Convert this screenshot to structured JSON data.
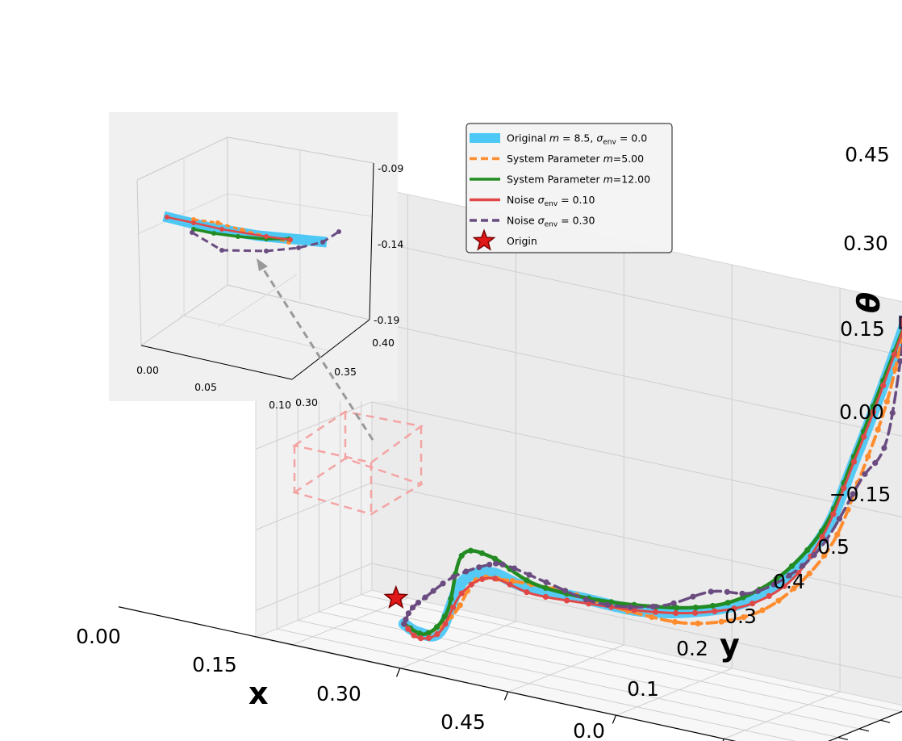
{
  "chart_data": {
    "type": "line",
    "projection": "3d",
    "grid": true,
    "axes": {
      "x": {
        "label": "x",
        "ticks": [
          "0.00",
          "0.15",
          "0.30",
          "0.45"
        ]
      },
      "y": {
        "label": "y",
        "ticks": [
          "0.0",
          "0.1",
          "0.2",
          "0.3",
          "0.4",
          "0.5"
        ]
      },
      "z": {
        "label": "θ",
        "ticks": [
          "−0.15",
          "0.00",
          "0.15",
          "0.30",
          "0.45"
        ]
      }
    },
    "legend": {
      "placement": "upper-center",
      "entries": [
        {
          "prefix": "Original ",
          "sym": "m",
          "mid": " = 8.5, ",
          "sigma": "σ",
          "sub": "env",
          "suffix": " = 0.0",
          "color": "#4dc8f5",
          "style": "thick"
        },
        {
          "prefix": "System Parameter ",
          "sym": "m",
          "mid": "=5.00",
          "sigma": "",
          "sub": "",
          "suffix": "",
          "color": "#ff8c2e",
          "style": "dashed"
        },
        {
          "prefix": "System Parameter ",
          "sym": "m",
          "mid": "=12.00",
          "sigma": "",
          "sub": "",
          "suffix": "",
          "color": "#228b22",
          "style": "solid"
        },
        {
          "prefix": "Noise ",
          "sym": "",
          "mid": "",
          "sigma": "σ",
          "sub": "env",
          "suffix": " = 0.10",
          "color": "#e04848",
          "style": "solid"
        },
        {
          "prefix": "Noise ",
          "sym": "",
          "mid": "",
          "sigma": "σ",
          "sub": "env",
          "suffix": " = 0.30",
          "color": "#6a4c80",
          "style": "dashed"
        },
        {
          "prefix": "Origin",
          "sym": "",
          "mid": "",
          "sigma": "",
          "sub": "",
          "suffix": "",
          "color": "#e01818",
          "style": "star"
        }
      ]
    },
    "series": [
      {
        "name": "Original m = 8.5, σenv = 0.0",
        "color": "#4dc8f5",
        "points": [
          [
            0.0,
            0.02,
            -0.12
          ],
          [
            0.02,
            0.02,
            -0.13
          ],
          [
            0.05,
            0.02,
            -0.12
          ],
          [
            0.08,
            0.02,
            -0.02
          ],
          [
            0.12,
            0.02,
            0.01
          ],
          [
            0.16,
            0.05,
            -0.01
          ],
          [
            0.22,
            0.1,
            -0.02
          ],
          [
            0.28,
            0.18,
            -0.04
          ],
          [
            0.33,
            0.26,
            -0.04
          ],
          [
            0.38,
            0.33,
            -0.02
          ],
          [
            0.42,
            0.4,
            0.03
          ],
          [
            0.46,
            0.45,
            0.12
          ],
          [
            0.49,
            0.48,
            0.25
          ],
          [
            0.52,
            0.5,
            0.38
          ],
          [
            0.55,
            0.52,
            0.52
          ]
        ]
      },
      {
        "name": "System Parameter m=5.00",
        "color": "#ff8c2e",
        "points": [
          [
            0.0,
            0.02,
            -0.12
          ],
          [
            0.03,
            0.02,
            -0.13
          ],
          [
            0.07,
            0.02,
            -0.08
          ],
          [
            0.1,
            0.02,
            -0.01
          ],
          [
            0.14,
            0.03,
            0.0
          ],
          [
            0.2,
            0.08,
            -0.01
          ],
          [
            0.27,
            0.16,
            -0.04
          ],
          [
            0.33,
            0.25,
            -0.06
          ],
          [
            0.39,
            0.33,
            -0.04
          ],
          [
            0.43,
            0.4,
            0.01
          ],
          [
            0.47,
            0.45,
            0.1
          ],
          [
            0.5,
            0.48,
            0.23
          ],
          [
            0.53,
            0.5,
            0.37
          ],
          [
            0.55,
            0.52,
            0.52
          ]
        ]
      },
      {
        "name": "System Parameter m=12.00",
        "color": "#228b22",
        "points": [
          [
            0.0,
            0.02,
            -0.12
          ],
          [
            0.03,
            0.02,
            -0.13
          ],
          [
            0.06,
            0.02,
            -0.08
          ],
          [
            0.08,
            0.02,
            0.03
          ],
          [
            0.12,
            0.02,
            0.04
          ],
          [
            0.17,
            0.05,
            0.0
          ],
          [
            0.23,
            0.11,
            -0.02
          ],
          [
            0.29,
            0.19,
            -0.03
          ],
          [
            0.34,
            0.27,
            -0.03
          ],
          [
            0.38,
            0.33,
            -0.01
          ],
          [
            0.42,
            0.4,
            0.04
          ],
          [
            0.46,
            0.45,
            0.13
          ],
          [
            0.49,
            0.48,
            0.26
          ],
          [
            0.52,
            0.5,
            0.39
          ],
          [
            0.55,
            0.52,
            0.52
          ]
        ]
      },
      {
        "name": "Noise σenv = 0.10",
        "color": "#e04848",
        "points": [
          [
            0.0,
            0.02,
            -0.12
          ],
          [
            0.02,
            0.02,
            -0.14
          ],
          [
            0.05,
            0.02,
            -0.12
          ],
          [
            0.08,
            0.02,
            -0.04
          ],
          [
            0.12,
            0.02,
            0.0
          ],
          [
            0.17,
            0.05,
            -0.02
          ],
          [
            0.23,
            0.11,
            -0.03
          ],
          [
            0.29,
            0.19,
            -0.04
          ],
          [
            0.34,
            0.27,
            -0.04
          ],
          [
            0.39,
            0.34,
            -0.02
          ],
          [
            0.43,
            0.4,
            0.03
          ],
          [
            0.46,
            0.45,
            0.12
          ],
          [
            0.49,
            0.48,
            0.25
          ],
          [
            0.52,
            0.5,
            0.38
          ],
          [
            0.55,
            0.52,
            0.52
          ]
        ]
      },
      {
        "name": "Noise σenv = 0.30",
        "color": "#6a4c80",
        "points": [
          [
            0.0,
            0.02,
            -0.12
          ],
          [
            0.01,
            0.02,
            -0.09
          ],
          [
            0.03,
            0.03,
            -0.06
          ],
          [
            0.06,
            0.05,
            -0.02
          ],
          [
            0.1,
            0.07,
            0.01
          ],
          [
            0.13,
            0.06,
            0.02
          ],
          [
            0.18,
            0.08,
            0.0
          ],
          [
            0.24,
            0.13,
            -0.03
          ],
          [
            0.3,
            0.21,
            -0.03
          ],
          [
            0.35,
            0.28,
            0.0
          ],
          [
            0.39,
            0.34,
            0.0
          ],
          [
            0.43,
            0.4,
            0.04
          ],
          [
            0.46,
            0.45,
            0.1
          ],
          [
            0.5,
            0.48,
            0.22
          ],
          [
            0.53,
            0.5,
            0.3
          ],
          [
            0.55,
            0.52,
            0.52
          ]
        ]
      }
    ],
    "origin": [
      0.0,
      0.02,
      -0.12
    ],
    "inset": {
      "ticks_x": [
        "0.00",
        "0.05",
        "0.10"
      ],
      "ticks_y": [
        "0.30",
        "0.35",
        "0.40"
      ],
      "ticks_z": [
        "-0.09",
        "-0.14",
        "-0.19"
      ]
    }
  }
}
